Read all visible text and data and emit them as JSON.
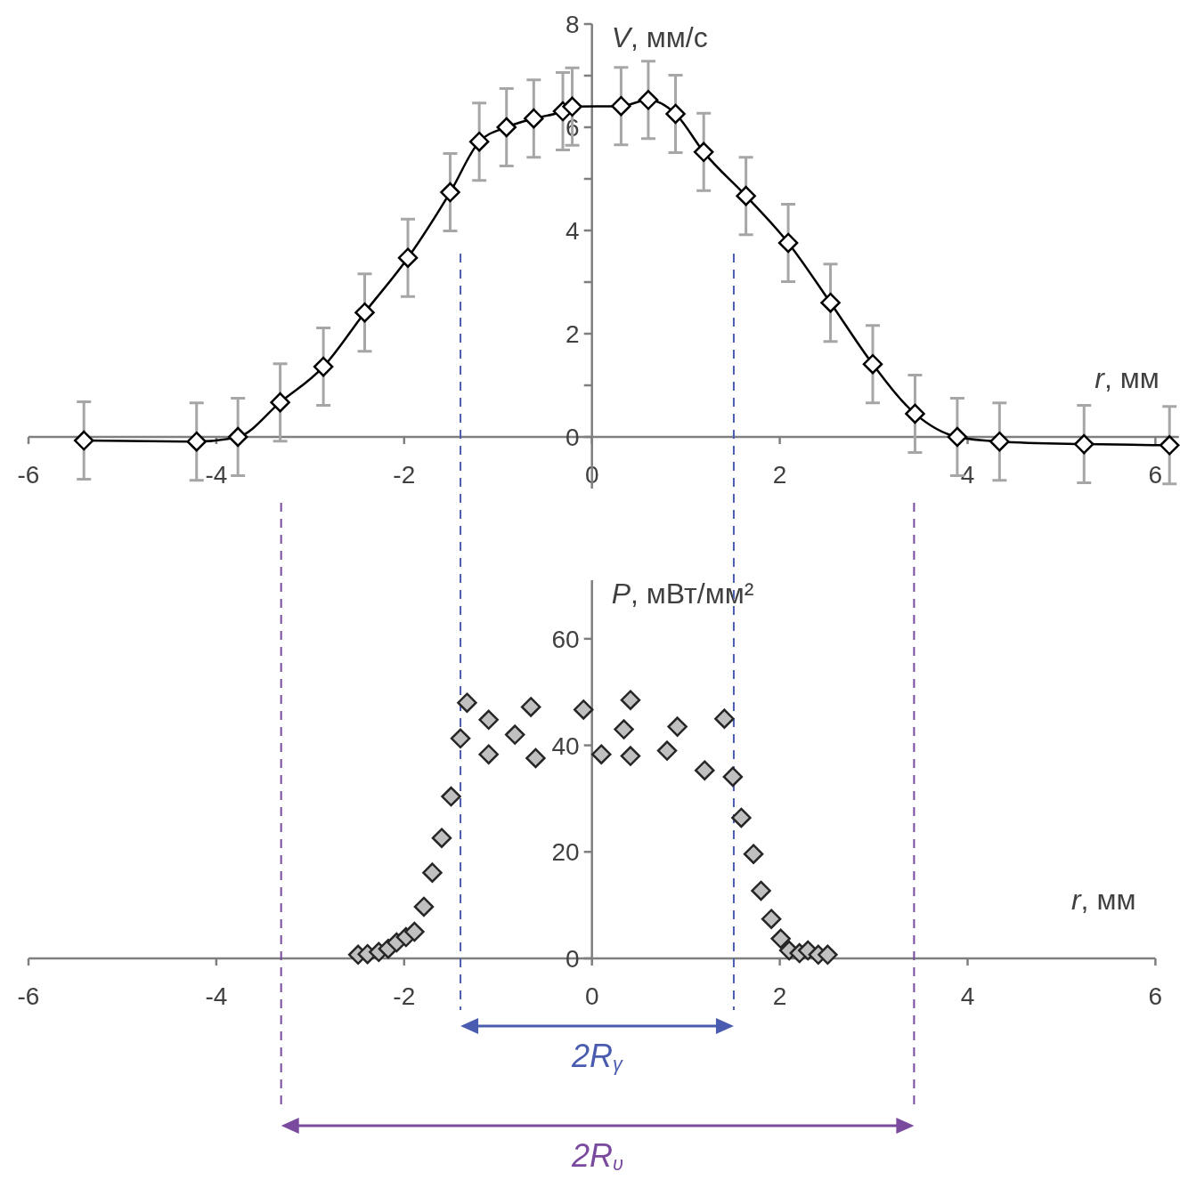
{
  "chart_data": [
    {
      "type": "line",
      "xlabel": "r, мм",
      "ylabel": "V, мм/с",
      "xlim": [
        -6,
        6.25
      ],
      "ylim": [
        -1,
        8
      ],
      "xticks": [
        -6,
        -4,
        -2,
        0,
        2,
        4,
        6
      ],
      "yticks": [
        0,
        {
          "value": 1,
          "label": null
        },
        2,
        {
          "value": 3,
          "label": null
        },
        4,
        {
          "value": 5,
          "label": null
        },
        6,
        {
          "value": 7,
          "label": null
        },
        8
      ],
      "marker": "diamond",
      "line_style": "solid",
      "series": [
        {
          "color": "#000000",
          "x": [
            -5.41,
            -4.21,
            -3.77,
            -3.32,
            -2.86,
            -2.42,
            -1.96,
            -1.51,
            -1.2,
            -0.91,
            -0.62,
            -0.31,
            -0.21,
            0.31,
            0.6,
            0.89,
            1.19,
            1.64,
            2.09,
            2.54,
            2.99,
            3.44,
            3.89,
            4.34,
            5.24,
            6.15
          ],
          "values": [
            -0.07,
            -0.09,
            0,
            0.67,
            1.36,
            2.41,
            3.47,
            4.74,
            5.72,
            6.0,
            6.17,
            6.31,
            6.4,
            6.41,
            6.53,
            6.26,
            5.52,
            4.67,
            3.76,
            2.6,
            1.41,
            0.45,
            0,
            -0.09,
            -0.14,
            -0.16
          ],
          "errors": [
            0.75,
            0.75,
            0.75,
            0.75,
            0.75,
            0.75,
            0.75,
            0.75,
            0.75,
            0.75,
            0.75,
            0.75,
            0.75,
            0.75,
            0.75,
            0.75,
            0.75,
            0.75,
            0.75,
            0.75,
            0.75,
            0.75,
            0.75,
            0.75,
            0.75,
            0.75
          ]
        }
      ]
    },
    {
      "type": "scatter",
      "xlabel": "r, мм",
      "ylabel": "P, мВт/мм²",
      "xlim": [
        -6,
        6
      ],
      "ylim": [
        0,
        71
      ],
      "xticks": [
        -6,
        -4,
        -2,
        0,
        2,
        4,
        6
      ],
      "yticks": [
        0,
        20,
        40,
        60
      ],
      "marker": "diamond",
      "series": [
        {
          "color": "#c0c0c0",
          "x": [
            -2.49,
            -2.39,
            -2.27,
            -2.17,
            -2.08,
            -1.98,
            -1.89,
            -1.79,
            -1.7,
            -1.6,
            -1.5,
            -1.4,
            -1.33,
            -1.1,
            -1.1,
            -0.82,
            -0.65,
            -0.6,
            -0.09,
            0.1,
            0.34,
            0.41,
            0.41,
            0.8,
            0.91,
            1.2,
            1.41,
            1.5,
            1.59,
            1.72,
            1.8,
            1.91,
            2.01,
            2.1,
            2.21,
            2.3,
            2.41,
            2.51
          ],
          "values": [
            0.7,
            0.8,
            1.2,
            1.8,
            3.0,
            4.0,
            5.0,
            9.7,
            16.1,
            22.6,
            30.4,
            41.3,
            48.0,
            44.8,
            38.3,
            42.0,
            47.2,
            37.6,
            46.7,
            38.3,
            43.0,
            48.5,
            38.0,
            39.0,
            43.5,
            35.3,
            45.0,
            34.1,
            26.4,
            19.6,
            12.7,
            7.4,
            3.7,
            1.5,
            1.0,
            1.5,
            0.7,
            0.7
          ]
        }
      ],
      "ref_lines": [
        {
          "axis": "x",
          "value": -1.4,
          "color": "#4a5cb0",
          "line_style": "dashed"
        },
        {
          "axis": "x",
          "value": 1.51,
          "color": "#4a5cb0",
          "line_style": "dashed"
        },
        {
          "axis": "x",
          "value": -3.31,
          "color": "#7a4a9e",
          "line_style": "dashed"
        },
        {
          "axis": "x",
          "value": 3.43,
          "color": "#7a4a9e",
          "line_style": "dashed"
        }
      ],
      "annotations": [
        "2R$_{γ}$",
        "2R$_{υ}$"
      ]
    }
  ]
}
